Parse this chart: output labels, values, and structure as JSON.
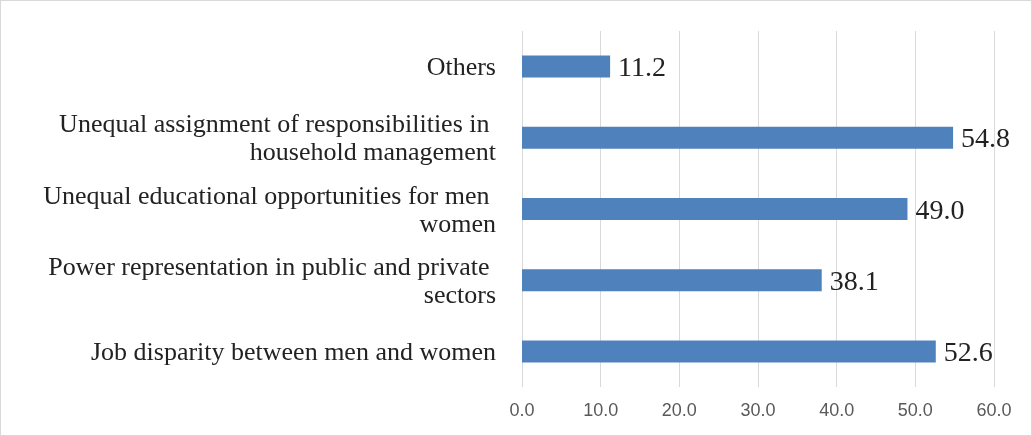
{
  "chart_data": {
    "type": "bar",
    "orientation": "horizontal",
    "categories": [
      "Others",
      "Unequal assignment of responsibilities in household management",
      "Unequal educational opportunities for men women",
      "Power representation in public and private sectors",
      "Job disparity between men and women"
    ],
    "values": [
      11.2,
      54.8,
      49.0,
      38.1,
      52.6
    ],
    "value_labels": [
      "11.2",
      "54.8",
      "49.0",
      "38.1",
      "52.6"
    ],
    "color": "#4f81bd",
    "xlim": [
      0,
      60
    ],
    "xticks": [
      {
        "value": 0,
        "label": "0.0"
      },
      {
        "value": 10,
        "label": "10.0"
      },
      {
        "value": 20,
        "label": "20.0"
      },
      {
        "value": 30,
        "label": "30.0"
      },
      {
        "value": 40,
        "label": "40.0"
      },
      {
        "value": 50,
        "label": "50.0"
      },
      {
        "value": 60,
        "label": "60.0"
      }
    ],
    "grid": "x"
  }
}
